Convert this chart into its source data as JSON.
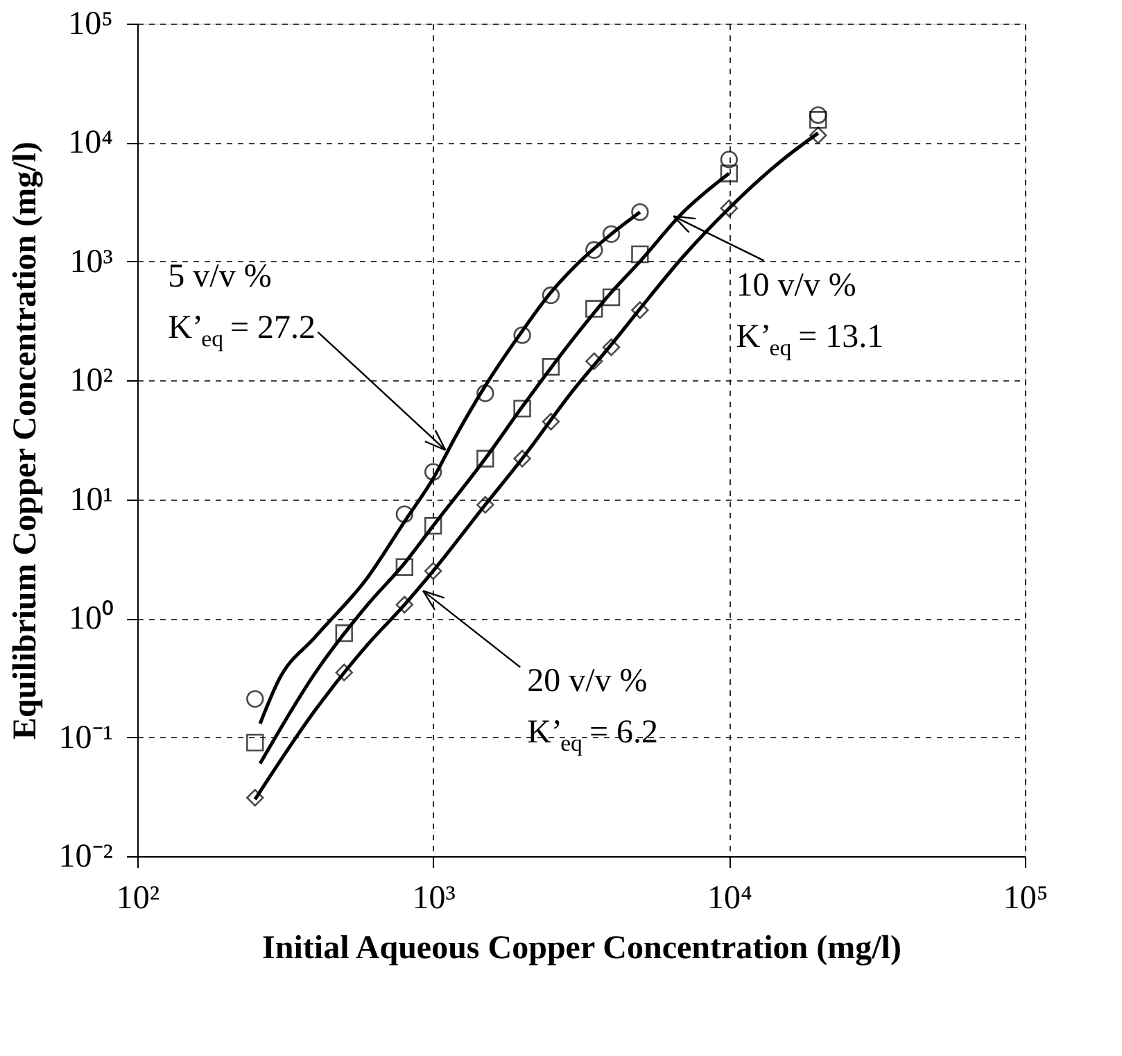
{
  "chart_data": {
    "type": "scatter",
    "xlabel": "Initial Aqueous Copper Concentration (mg/l)",
    "ylabel": "Equilibrium Copper Concentration (mg/l)",
    "log": "xy",
    "grid": true,
    "xlim": [
      100,
      100000
    ],
    "ylim": [
      0.01,
      100000
    ],
    "xticks": [
      {
        "value": 100,
        "label": "10²"
      },
      {
        "value": 1000,
        "label": "10³"
      },
      {
        "value": 10000,
        "label": "10⁴"
      },
      {
        "value": 100000,
        "label": "10⁵"
      }
    ],
    "yticks": [
      {
        "value": 0.01,
        "label": "10⁻²"
      },
      {
        "value": 0.1,
        "label": "10⁻¹"
      },
      {
        "value": 1,
        "label": "10⁰"
      },
      {
        "value": 10,
        "label": "10¹"
      },
      {
        "value": 100,
        "label": "10²"
      },
      {
        "value": 1000,
        "label": "10³"
      },
      {
        "value": 10000,
        "label": "10⁴"
      },
      {
        "value": 100000,
        "label": "10⁵"
      }
    ],
    "x": [
      250,
      500,
      800,
      1000,
      1500,
      2000,
      2500,
      3500,
      4000,
      5000,
      10000,
      20000
    ],
    "series": [
      {
        "marker": "circle",
        "color": "#000000",
        "x": [
          250,
          800,
          1000,
          1500,
          2000,
          2500,
          3500,
          4000,
          5000,
          10000,
          20000
        ],
        "values": [
          0.21,
          7.5,
          17,
          78,
          240,
          520,
          1250,
          1700,
          2600,
          7200,
          17000
        ]
      },
      {
        "marker": "square",
        "color": "#000000",
        "values": [
          0.09,
          0.75,
          2.7,
          6,
          22,
          58,
          130,
          400,
          500,
          1150,
          5500,
          15500
        ]
      },
      {
        "marker": "diamond",
        "color": "#000000",
        "values": [
          0.031,
          0.35,
          1.3,
          2.5,
          9,
          22,
          45,
          145,
          190,
          390,
          2800,
          11500
        ]
      },
      {
        "type": "line",
        "marker": "none",
        "color": "#000000",
        "x": [
          260,
          300,
          400,
          600,
          800,
          1000,
          1200,
          1500,
          2000,
          2500,
          3000,
          4000,
          5000
        ],
        "values": [
          0.13,
          0.3,
          0.7,
          2.2,
          6.5,
          15,
          35,
          90,
          260,
          550,
          900,
          1700,
          2600
        ]
      },
      {
        "type": "line",
        "marker": "none",
        "color": "#000000",
        "x": [
          260,
          400,
          600,
          800,
          1000,
          1500,
          2000,
          3000,
          4000,
          5000,
          7000,
          10000
        ],
        "values": [
          0.06,
          0.35,
          1.3,
          2.9,
          6,
          22,
          60,
          230,
          550,
          1000,
          2600,
          5500
        ]
      },
      {
        "type": "line",
        "marker": "none",
        "color": "#000000",
        "x": [
          250,
          400,
          600,
          800,
          1000,
          1500,
          2000,
          3000,
          4000,
          5000,
          7000,
          10000,
          15000,
          20000
        ],
        "values": [
          0.03,
          0.17,
          0.6,
          1.3,
          2.5,
          9,
          22,
          85,
          200,
          400,
          1100,
          2800,
          7000,
          12000
        ]
      }
    ],
    "annotations": [
      {
        "text": "5 v/v %\nK’$_{eq}$ = 27.2",
        "x": 1100,
        "y": 26
      },
      {
        "text": "10 v/v %\nK’$_{eq}$ = 13.1",
        "x": 6500,
        "y": 2400
      },
      {
        "text": "20 v/v %\nK’$_{eq}$ = 6.2",
        "x": 925,
        "y": 1.7
      }
    ]
  }
}
